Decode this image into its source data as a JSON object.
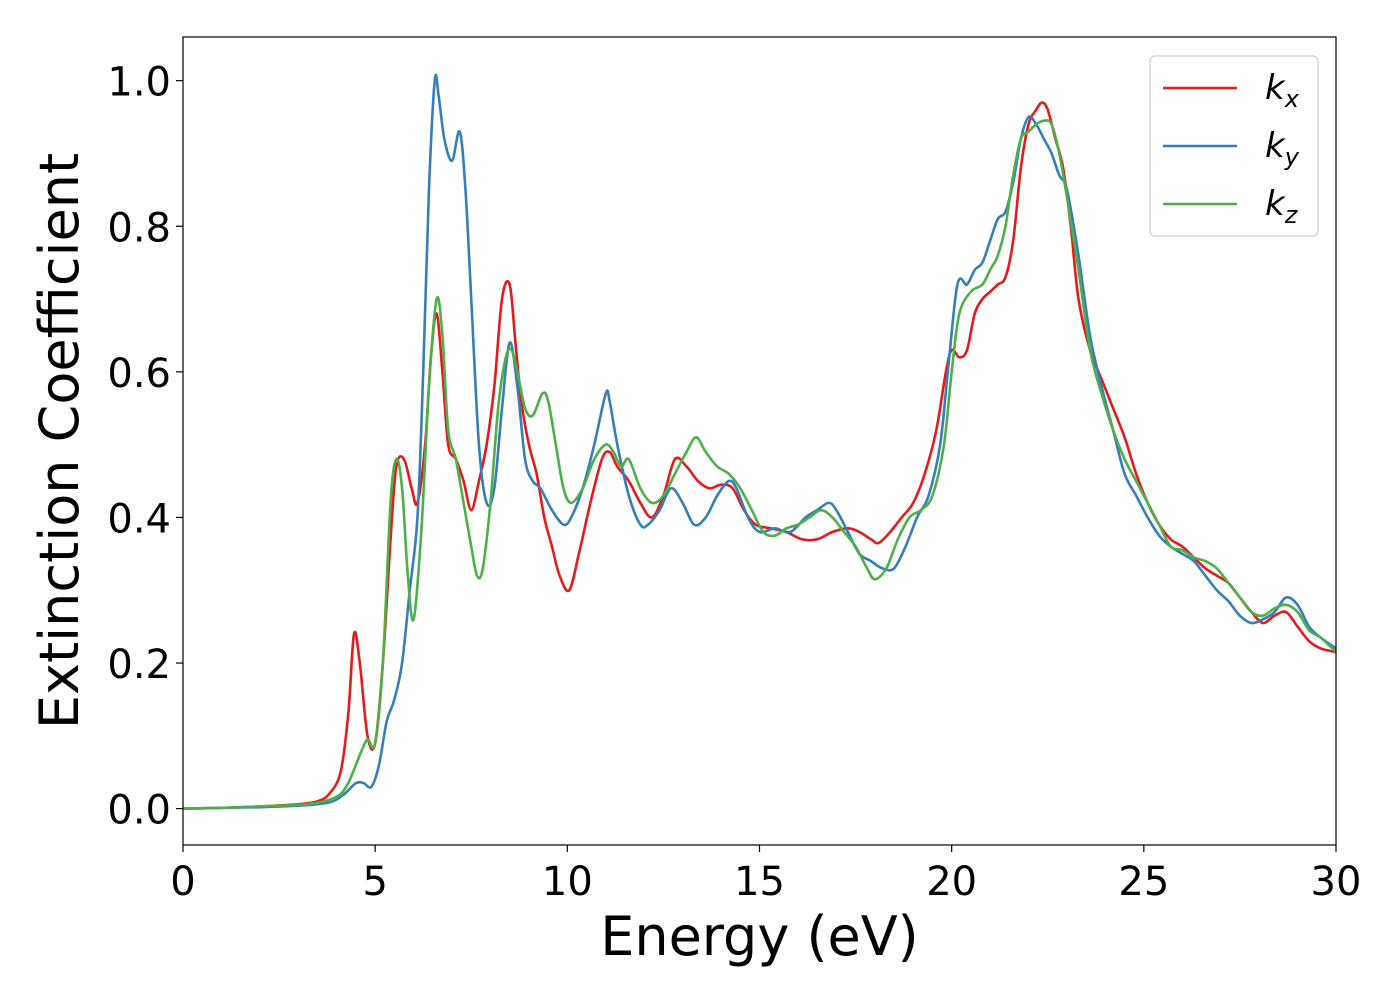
{
  "chart_data": {
    "type": "line",
    "title": "",
    "xlabel": "Energy (eV)",
    "ylabel": "Extinction Coefficient",
    "xlim": [
      0,
      30
    ],
    "ylim": [
      -0.05,
      1.06
    ],
    "xticks": [
      0,
      5,
      10,
      15,
      20,
      25,
      30
    ],
    "xtick_labels": [
      "0",
      "5",
      "10",
      "15",
      "20",
      "25",
      "30"
    ],
    "yticks": [
      0.0,
      0.2,
      0.4,
      0.6,
      0.8,
      1.0
    ],
    "ytick_labels": [
      "0.0",
      "0.2",
      "0.4",
      "0.6",
      "0.8",
      "1.0"
    ],
    "grid": false,
    "legend_position": "top-right",
    "series": [
      {
        "name": "kx",
        "base": "k",
        "sub": "x",
        "color": "#e41a1c",
        "x": [
          0,
          1,
          2,
          3,
          3.5,
          3.8,
          4.1,
          4.3,
          4.45,
          4.6,
          4.8,
          5.0,
          5.2,
          5.4,
          5.55,
          5.75,
          5.95,
          6.1,
          6.3,
          6.45,
          6.6,
          6.75,
          6.9,
          7.1,
          7.3,
          7.5,
          7.7,
          7.9,
          8.1,
          8.3,
          8.5,
          8.65,
          8.8,
          9.0,
          9.2,
          9.4,
          9.6,
          9.8,
          10.05,
          10.3,
          10.6,
          10.9,
          11.1,
          11.3,
          11.6,
          11.9,
          12.2,
          12.5,
          12.8,
          13.1,
          13.4,
          13.7,
          14.0,
          14.3,
          14.6,
          14.9,
          15.3,
          15.7,
          16.1,
          16.5,
          16.9,
          17.3,
          17.6,
          17.9,
          18.1,
          18.4,
          18.7,
          19.0,
          19.3,
          19.6,
          19.85,
          20.0,
          20.2,
          20.4,
          20.6,
          20.8,
          21.0,
          21.2,
          21.4,
          21.6,
          21.8,
          22.0,
          22.2,
          22.35,
          22.5,
          22.7,
          22.9,
          23.1,
          23.3,
          23.6,
          23.9,
          24.2,
          24.5,
          24.8,
          25.1,
          25.4,
          25.7,
          26.0,
          26.3,
          26.6,
          26.9,
          27.2,
          27.5,
          27.8,
          28.1,
          28.4,
          28.7,
          29.0,
          29.3,
          29.6,
          30.0
        ],
        "y": [
          0,
          0.001,
          0.003,
          0.006,
          0.01,
          0.02,
          0.05,
          0.13,
          0.24,
          0.2,
          0.1,
          0.09,
          0.2,
          0.37,
          0.47,
          0.48,
          0.44,
          0.42,
          0.5,
          0.62,
          0.68,
          0.6,
          0.5,
          0.48,
          0.45,
          0.41,
          0.45,
          0.5,
          0.58,
          0.7,
          0.72,
          0.64,
          0.56,
          0.5,
          0.46,
          0.4,
          0.36,
          0.32,
          0.3,
          0.35,
          0.42,
          0.48,
          0.49,
          0.47,
          0.45,
          0.42,
          0.4,
          0.43,
          0.48,
          0.47,
          0.45,
          0.44,
          0.445,
          0.44,
          0.41,
          0.39,
          0.385,
          0.38,
          0.37,
          0.37,
          0.38,
          0.385,
          0.38,
          0.37,
          0.365,
          0.38,
          0.4,
          0.42,
          0.46,
          0.52,
          0.6,
          0.63,
          0.62,
          0.63,
          0.68,
          0.7,
          0.71,
          0.72,
          0.73,
          0.78,
          0.88,
          0.94,
          0.96,
          0.97,
          0.96,
          0.92,
          0.88,
          0.8,
          0.7,
          0.63,
          0.59,
          0.55,
          0.51,
          0.46,
          0.42,
          0.39,
          0.37,
          0.36,
          0.345,
          0.33,
          0.32,
          0.31,
          0.29,
          0.27,
          0.255,
          0.265,
          0.27,
          0.25,
          0.23,
          0.22,
          0.215
        ]
      },
      {
        "name": "ky",
        "base": "k",
        "sub": "y",
        "color": "#377eb8",
        "x": [
          0,
          1,
          2,
          3,
          3.5,
          3.9,
          4.2,
          4.5,
          4.7,
          4.9,
          5.1,
          5.3,
          5.5,
          5.7,
          5.9,
          6.1,
          6.25,
          6.4,
          6.55,
          6.65,
          6.8,
          7.0,
          7.2,
          7.35,
          7.5,
          7.7,
          7.9,
          8.1,
          8.3,
          8.5,
          8.7,
          8.9,
          9.1,
          9.3,
          9.6,
          9.9,
          10.1,
          10.4,
          10.7,
          11.0,
          11.1,
          11.3,
          11.6,
          11.9,
          12.1,
          12.4,
          12.7,
          13.0,
          13.3,
          13.6,
          13.9,
          14.2,
          14.4,
          14.7,
          15.0,
          15.4,
          15.8,
          16.2,
          16.5,
          16.8,
          17.0,
          17.3,
          17.6,
          17.9,
          18.2,
          18.5,
          18.8,
          19.1,
          19.4,
          19.7,
          19.9,
          20.15,
          20.4,
          20.6,
          20.8,
          21.0,
          21.2,
          21.4,
          21.6,
          21.8,
          22.0,
          22.2,
          22.4,
          22.6,
          22.8,
          23.0,
          23.3,
          23.6,
          23.9,
          24.2,
          24.5,
          24.8,
          25.1,
          25.4,
          25.7,
          26.0,
          26.3,
          26.6,
          26.9,
          27.2,
          27.5,
          27.8,
          28.1,
          28.4,
          28.7,
          29.0,
          29.3,
          29.6,
          30.0
        ],
        "y": [
          0,
          0.001,
          0.002,
          0.004,
          0.006,
          0.01,
          0.02,
          0.035,
          0.035,
          0.03,
          0.06,
          0.12,
          0.15,
          0.2,
          0.3,
          0.4,
          0.6,
          0.85,
          1.0,
          0.98,
          0.92,
          0.89,
          0.93,
          0.85,
          0.7,
          0.5,
          0.42,
          0.44,
          0.55,
          0.64,
          0.58,
          0.48,
          0.45,
          0.44,
          0.41,
          0.39,
          0.4,
          0.44,
          0.5,
          0.57,
          0.56,
          0.5,
          0.43,
          0.39,
          0.39,
          0.41,
          0.44,
          0.42,
          0.39,
          0.4,
          0.43,
          0.45,
          0.44,
          0.4,
          0.38,
          0.385,
          0.38,
          0.4,
          0.41,
          0.42,
          0.41,
          0.38,
          0.35,
          0.34,
          0.33,
          0.33,
          0.36,
          0.4,
          0.43,
          0.5,
          0.6,
          0.72,
          0.72,
          0.74,
          0.75,
          0.78,
          0.81,
          0.82,
          0.86,
          0.92,
          0.95,
          0.94,
          0.92,
          0.9,
          0.87,
          0.85,
          0.76,
          0.65,
          0.58,
          0.52,
          0.46,
          0.43,
          0.4,
          0.375,
          0.36,
          0.35,
          0.34,
          0.32,
          0.3,
          0.285,
          0.265,
          0.255,
          0.26,
          0.27,
          0.29,
          0.28,
          0.25,
          0.235,
          0.22
        ]
      },
      {
        "name": "kz",
        "base": "k",
        "sub": "z",
        "color": "#4daf4a",
        "x": [
          0,
          1,
          2,
          3,
          3.5,
          3.8,
          4.1,
          4.3,
          4.5,
          4.65,
          4.8,
          5.0,
          5.2,
          5.4,
          5.55,
          5.7,
          5.85,
          6.0,
          6.2,
          6.4,
          6.6,
          6.75,
          6.9,
          7.1,
          7.3,
          7.5,
          7.65,
          7.8,
          8.0,
          8.2,
          8.4,
          8.55,
          8.7,
          8.9,
          9.1,
          9.35,
          9.5,
          9.7,
          9.9,
          10.1,
          10.4,
          10.7,
          11.0,
          11.2,
          11.4,
          11.6,
          11.9,
          12.2,
          12.5,
          12.8,
          13.1,
          13.35,
          13.6,
          13.9,
          14.2,
          14.5,
          14.8,
          15.1,
          15.4,
          15.7,
          16.0,
          16.3,
          16.6,
          16.9,
          17.2,
          17.5,
          17.8,
          18.0,
          18.3,
          18.6,
          18.9,
          19.2,
          19.5,
          19.8,
          20.0,
          20.2,
          20.5,
          20.8,
          21.0,
          21.2,
          21.4,
          21.6,
          21.8,
          22.0,
          22.2,
          22.4,
          22.6,
          22.8,
          23.0,
          23.3,
          23.6,
          23.9,
          24.2,
          24.5,
          24.8,
          25.1,
          25.4,
          25.7,
          26.0,
          26.3,
          26.6,
          26.9,
          27.2,
          27.5,
          27.8,
          28.1,
          28.4,
          28.7,
          29.0,
          29.3,
          29.6,
          30.0
        ],
        "y": [
          0,
          0.001,
          0.003,
          0.005,
          0.008,
          0.012,
          0.02,
          0.035,
          0.06,
          0.08,
          0.095,
          0.09,
          0.2,
          0.42,
          0.48,
          0.44,
          0.32,
          0.26,
          0.38,
          0.58,
          0.7,
          0.65,
          0.52,
          0.48,
          0.42,
          0.36,
          0.32,
          0.33,
          0.42,
          0.55,
          0.62,
          0.63,
          0.6,
          0.55,
          0.54,
          0.57,
          0.56,
          0.5,
          0.44,
          0.42,
          0.44,
          0.48,
          0.5,
          0.49,
          0.47,
          0.48,
          0.44,
          0.42,
          0.43,
          0.46,
          0.49,
          0.51,
          0.49,
          0.47,
          0.46,
          0.44,
          0.41,
          0.38,
          0.375,
          0.385,
          0.39,
          0.4,
          0.41,
          0.4,
          0.38,
          0.36,
          0.33,
          0.315,
          0.33,
          0.37,
          0.4,
          0.41,
          0.43,
          0.5,
          0.6,
          0.68,
          0.71,
          0.72,
          0.74,
          0.76,
          0.8,
          0.87,
          0.92,
          0.93,
          0.94,
          0.945,
          0.94,
          0.9,
          0.84,
          0.74,
          0.63,
          0.57,
          0.52,
          0.48,
          0.45,
          0.42,
          0.39,
          0.36,
          0.355,
          0.345,
          0.34,
          0.33,
          0.31,
          0.29,
          0.27,
          0.265,
          0.275,
          0.28,
          0.27,
          0.245,
          0.235,
          0.215
        ]
      }
    ]
  }
}
